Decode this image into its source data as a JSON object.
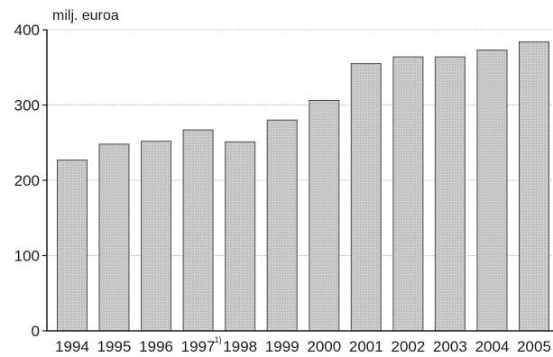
{
  "chart_data": {
    "type": "bar",
    "ylabel": "milj. euroa",
    "categories": [
      "1994",
      "1995",
      "1996",
      "1997",
      "1998",
      "1999",
      "2000",
      "2001",
      "2002",
      "2003",
      "2004",
      "2005"
    ],
    "values": [
      227,
      248,
      252,
      267,
      251,
      280,
      306,
      355,
      364,
      364,
      373,
      384
    ],
    "yticks": [
      "0",
      "100",
      "200",
      "300",
      "400"
    ],
    "ylim": [
      0,
      400
    ],
    "grid": true,
    "footnote_category": "1997",
    "footnote_mark": "1)",
    "bar_color": "#c8c8c8",
    "bar_edge_color": "#4a4a4a",
    "grid_color": "#9a9a9a"
  }
}
